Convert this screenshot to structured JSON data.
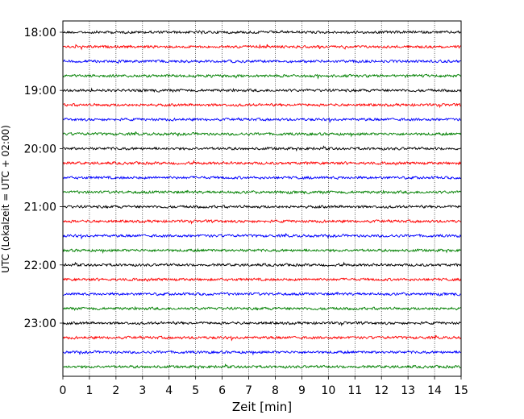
{
  "chart_data": {
    "type": "line",
    "title": "",
    "xlabel": "Zeit  [min]",
    "ylabel": "UTC (Lokalzeit = UTC + 02:00)",
    "xlim": [
      0,
      15
    ],
    "x_ticks": [
      0,
      1,
      2,
      3,
      4,
      5,
      6,
      7,
      8,
      9,
      10,
      11,
      12,
      13,
      14,
      15
    ],
    "y_tick_labels": [
      "18:00",
      "19:00",
      "20:00",
      "21:00",
      "22:00",
      "23:00"
    ],
    "rows_per_hour": 4,
    "row_start_times": [
      "18:00",
      "18:15",
      "18:30",
      "18:45",
      "19:00",
      "19:15",
      "19:30",
      "19:45",
      "20:00",
      "20:15",
      "20:30",
      "20:45",
      "21:00",
      "21:15",
      "21:30",
      "21:45",
      "22:00",
      "22:15",
      "22:30",
      "22:45",
      "23:00",
      "23:15",
      "23:30",
      "23:45"
    ],
    "trace_colors": [
      "#000000",
      "#ff0000",
      "#0000ff",
      "#008000"
    ],
    "grid": "vertical dotted at each minute",
    "legend": "none"
  }
}
